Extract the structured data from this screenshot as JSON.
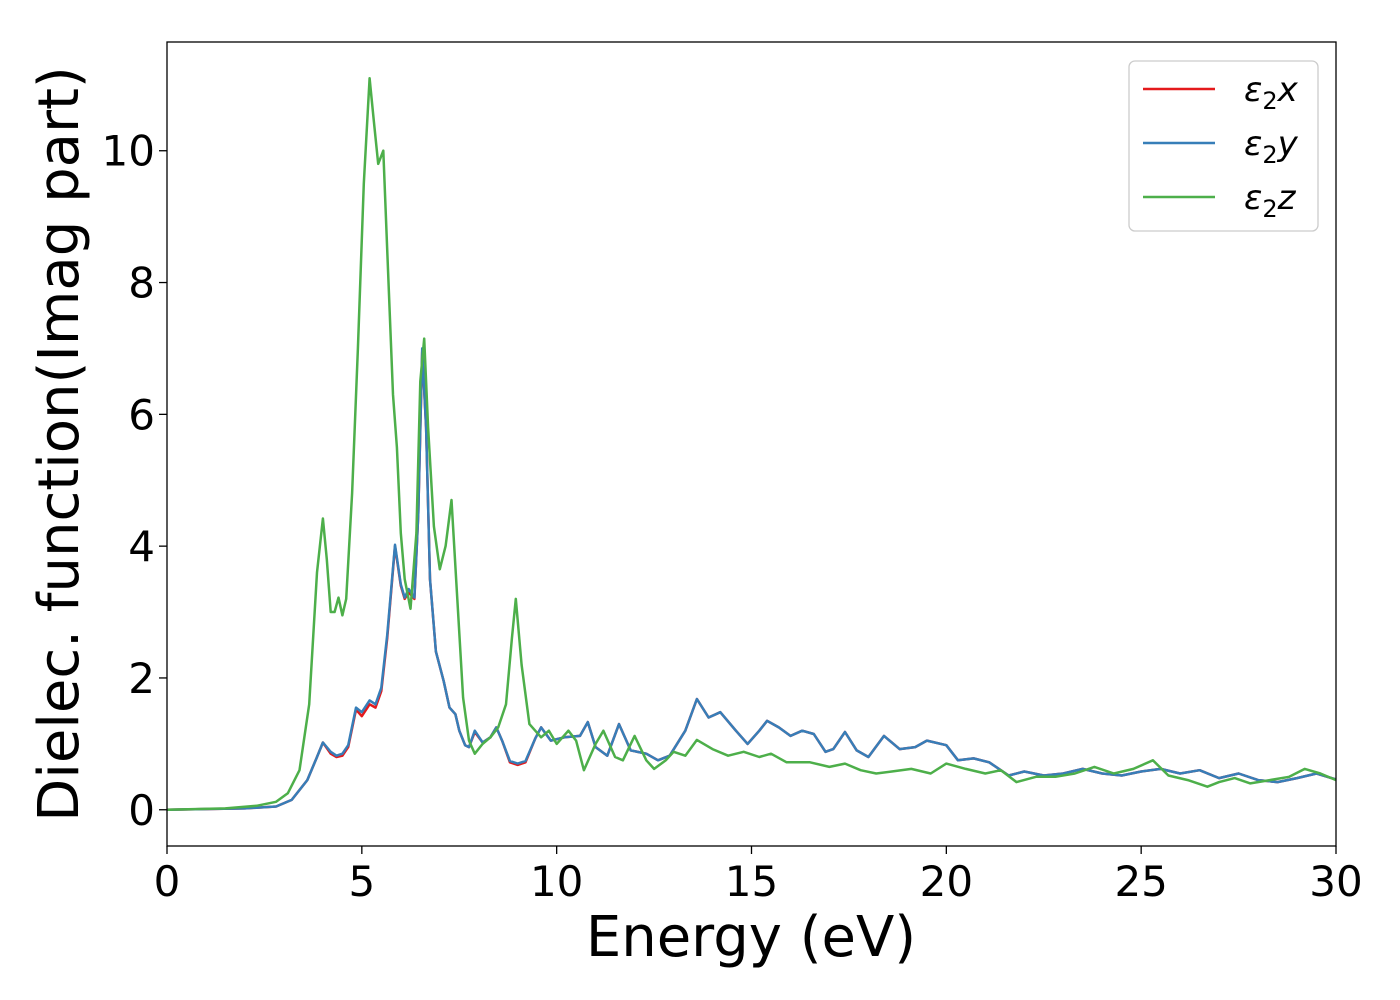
{
  "chart_data": {
    "type": "line",
    "xlabel": "Energy (eV)",
    "ylabel": "Dielec. function(Imag part)",
    "xlim": [
      0,
      30
    ],
    "ylim": [
      -0.55,
      11.65
    ],
    "xticks": [
      0,
      5,
      10,
      15,
      20,
      25,
      30
    ],
    "yticks": [
      0,
      2,
      4,
      6,
      8,
      10
    ],
    "grid": false,
    "legend_position": "top-right",
    "series": [
      {
        "name": "ε2x",
        "greek": "ε",
        "sub": "2",
        "axis": "x",
        "color": "#e41a1c",
        "points": [
          [
            0,
            0
          ],
          [
            2,
            0.02
          ],
          [
            2.8,
            0.05
          ],
          [
            3.2,
            0.15
          ],
          [
            3.6,
            0.45
          ],
          [
            3.85,
            0.8
          ],
          [
            4.0,
            1.02
          ],
          [
            4.2,
            0.85
          ],
          [
            4.35,
            0.8
          ],
          [
            4.5,
            0.82
          ],
          [
            4.65,
            0.95
          ],
          [
            4.85,
            1.52
          ],
          [
            5.0,
            1.42
          ],
          [
            5.2,
            1.6
          ],
          [
            5.35,
            1.55
          ],
          [
            5.5,
            1.8
          ],
          [
            5.65,
            2.6
          ],
          [
            5.85,
            4.0
          ],
          [
            6.0,
            3.4
          ],
          [
            6.1,
            3.2
          ],
          [
            6.2,
            3.3
          ],
          [
            6.35,
            3.2
          ],
          [
            6.45,
            4.5
          ],
          [
            6.55,
            6.95
          ],
          [
            6.65,
            5.8
          ],
          [
            6.75,
            3.5
          ],
          [
            6.9,
            2.4
          ],
          [
            7.1,
            1.95
          ],
          [
            7.25,
            1.55
          ],
          [
            7.4,
            1.45
          ],
          [
            7.5,
            1.2
          ],
          [
            7.65,
            0.98
          ],
          [
            7.75,
            0.95
          ],
          [
            7.9,
            1.18
          ],
          [
            8.1,
            1.02
          ],
          [
            8.3,
            1.1
          ],
          [
            8.45,
            1.25
          ],
          [
            8.6,
            1.05
          ],
          [
            8.8,
            0.72
          ],
          [
            9.0,
            0.68
          ],
          [
            9.2,
            0.72
          ],
          [
            9.45,
            1.08
          ],
          [
            9.6,
            1.25
          ],
          [
            9.85,
            1.05
          ],
          [
            10.2,
            1.1
          ],
          [
            10.6,
            1.12
          ],
          [
            10.8,
            1.33
          ],
          [
            11.0,
            0.95
          ],
          [
            11.3,
            0.82
          ],
          [
            11.6,
            1.3
          ],
          [
            11.9,
            0.9
          ],
          [
            12.3,
            0.85
          ],
          [
            12.6,
            0.75
          ],
          [
            12.9,
            0.82
          ],
          [
            13.3,
            1.2
          ],
          [
            13.6,
            1.68
          ],
          [
            13.9,
            1.4
          ],
          [
            14.2,
            1.48
          ],
          [
            14.6,
            1.2
          ],
          [
            14.9,
            1.0
          ],
          [
            15.2,
            1.2
          ],
          [
            15.4,
            1.35
          ],
          [
            15.7,
            1.25
          ],
          [
            16.0,
            1.12
          ],
          [
            16.3,
            1.2
          ],
          [
            16.6,
            1.15
          ],
          [
            16.9,
            0.88
          ],
          [
            17.1,
            0.92
          ],
          [
            17.4,
            1.18
          ],
          [
            17.7,
            0.9
          ],
          [
            18.0,
            0.8
          ],
          [
            18.4,
            1.12
          ],
          [
            18.8,
            0.92
          ],
          [
            19.2,
            0.95
          ],
          [
            19.5,
            1.05
          ],
          [
            20.0,
            0.98
          ],
          [
            20.3,
            0.75
          ],
          [
            20.7,
            0.78
          ],
          [
            21.1,
            0.72
          ],
          [
            21.6,
            0.52
          ],
          [
            22.0,
            0.58
          ],
          [
            22.5,
            0.52
          ],
          [
            23.0,
            0.55
          ],
          [
            23.5,
            0.62
          ],
          [
            24.0,
            0.55
          ],
          [
            24.5,
            0.52
          ],
          [
            25.0,
            0.58
          ],
          [
            25.5,
            0.62
          ],
          [
            26.0,
            0.55
          ],
          [
            26.5,
            0.6
          ],
          [
            27.0,
            0.48
          ],
          [
            27.5,
            0.55
          ],
          [
            28.0,
            0.45
          ],
          [
            28.5,
            0.42
          ],
          [
            29.0,
            0.48
          ],
          [
            29.5,
            0.55
          ],
          [
            30.0,
            0.46
          ]
        ]
      },
      {
        "name": "ε2y",
        "greek": "ε",
        "sub": "2",
        "axis": "y",
        "color": "#377eb8",
        "points": [
          [
            0,
            0
          ],
          [
            2,
            0.02
          ],
          [
            2.8,
            0.05
          ],
          [
            3.2,
            0.15
          ],
          [
            3.6,
            0.45
          ],
          [
            3.85,
            0.8
          ],
          [
            4.0,
            1.02
          ],
          [
            4.2,
            0.88
          ],
          [
            4.35,
            0.82
          ],
          [
            4.5,
            0.85
          ],
          [
            4.65,
            0.98
          ],
          [
            4.85,
            1.55
          ],
          [
            5.0,
            1.48
          ],
          [
            5.2,
            1.66
          ],
          [
            5.35,
            1.6
          ],
          [
            5.5,
            1.85
          ],
          [
            5.65,
            2.65
          ],
          [
            5.85,
            4.02
          ],
          [
            6.0,
            3.42
          ],
          [
            6.1,
            3.22
          ],
          [
            6.2,
            3.35
          ],
          [
            6.35,
            3.22
          ],
          [
            6.45,
            4.5
          ],
          [
            6.55,
            7.0
          ],
          [
            6.65,
            5.8
          ],
          [
            6.75,
            3.5
          ],
          [
            6.9,
            2.4
          ],
          [
            7.1,
            1.95
          ],
          [
            7.25,
            1.55
          ],
          [
            7.4,
            1.45
          ],
          [
            7.5,
            1.2
          ],
          [
            7.65,
            0.98
          ],
          [
            7.75,
            0.95
          ],
          [
            7.9,
            1.2
          ],
          [
            8.1,
            1.02
          ],
          [
            8.3,
            1.1
          ],
          [
            8.45,
            1.25
          ],
          [
            8.6,
            1.05
          ],
          [
            8.8,
            0.74
          ],
          [
            9.0,
            0.7
          ],
          [
            9.2,
            0.74
          ],
          [
            9.45,
            1.08
          ],
          [
            9.6,
            1.25
          ],
          [
            9.85,
            1.05
          ],
          [
            10.2,
            1.1
          ],
          [
            10.6,
            1.12
          ],
          [
            10.8,
            1.33
          ],
          [
            11.0,
            0.95
          ],
          [
            11.3,
            0.82
          ],
          [
            11.6,
            1.3
          ],
          [
            11.9,
            0.9
          ],
          [
            12.3,
            0.85
          ],
          [
            12.6,
            0.75
          ],
          [
            12.9,
            0.82
          ],
          [
            13.3,
            1.2
          ],
          [
            13.6,
            1.68
          ],
          [
            13.9,
            1.4
          ],
          [
            14.2,
            1.48
          ],
          [
            14.6,
            1.2
          ],
          [
            14.9,
            1.0
          ],
          [
            15.2,
            1.2
          ],
          [
            15.4,
            1.35
          ],
          [
            15.7,
            1.25
          ],
          [
            16.0,
            1.12
          ],
          [
            16.3,
            1.2
          ],
          [
            16.6,
            1.15
          ],
          [
            16.9,
            0.88
          ],
          [
            17.1,
            0.92
          ],
          [
            17.4,
            1.18
          ],
          [
            17.7,
            0.9
          ],
          [
            18.0,
            0.8
          ],
          [
            18.4,
            1.12
          ],
          [
            18.8,
            0.92
          ],
          [
            19.2,
            0.95
          ],
          [
            19.5,
            1.05
          ],
          [
            20.0,
            0.98
          ],
          [
            20.3,
            0.75
          ],
          [
            20.7,
            0.78
          ],
          [
            21.1,
            0.72
          ],
          [
            21.6,
            0.52
          ],
          [
            22.0,
            0.58
          ],
          [
            22.5,
            0.52
          ],
          [
            23.0,
            0.55
          ],
          [
            23.5,
            0.62
          ],
          [
            24.0,
            0.55
          ],
          [
            24.5,
            0.52
          ],
          [
            25.0,
            0.58
          ],
          [
            25.5,
            0.62
          ],
          [
            26.0,
            0.55
          ],
          [
            26.5,
            0.6
          ],
          [
            27.0,
            0.48
          ],
          [
            27.5,
            0.55
          ],
          [
            28.0,
            0.45
          ],
          [
            28.5,
            0.42
          ],
          [
            29.0,
            0.48
          ],
          [
            29.5,
            0.55
          ],
          [
            30.0,
            0.46
          ]
        ]
      },
      {
        "name": "ε2z",
        "greek": "ε",
        "sub": "2",
        "axis": "z",
        "color": "#4daf4a",
        "points": [
          [
            0,
            0
          ],
          [
            1.5,
            0.02
          ],
          [
            2.3,
            0.06
          ],
          [
            2.8,
            0.12
          ],
          [
            3.1,
            0.25
          ],
          [
            3.4,
            0.6
          ],
          [
            3.65,
            1.6
          ],
          [
            3.85,
            3.6
          ],
          [
            4.0,
            4.42
          ],
          [
            4.1,
            3.8
          ],
          [
            4.2,
            3.0
          ],
          [
            4.3,
            3.0
          ],
          [
            4.4,
            3.22
          ],
          [
            4.5,
            2.95
          ],
          [
            4.6,
            3.2
          ],
          [
            4.75,
            4.8
          ],
          [
            4.9,
            7.0
          ],
          [
            5.05,
            9.5
          ],
          [
            5.2,
            11.1
          ],
          [
            5.3,
            10.5
          ],
          [
            5.42,
            9.8
          ],
          [
            5.55,
            10.0
          ],
          [
            5.65,
            8.5
          ],
          [
            5.8,
            6.3
          ],
          [
            5.9,
            5.5
          ],
          [
            6.0,
            4.2
          ],
          [
            6.1,
            3.5
          ],
          [
            6.25,
            3.05
          ],
          [
            6.4,
            4.2
          ],
          [
            6.5,
            6.5
          ],
          [
            6.6,
            7.15
          ],
          [
            6.7,
            5.8
          ],
          [
            6.85,
            4.3
          ],
          [
            7.0,
            3.65
          ],
          [
            7.15,
            4.0
          ],
          [
            7.3,
            4.7
          ],
          [
            7.45,
            3.2
          ],
          [
            7.6,
            1.7
          ],
          [
            7.75,
            1.05
          ],
          [
            7.9,
            0.85
          ],
          [
            8.1,
            1.0
          ],
          [
            8.3,
            1.1
          ],
          [
            8.5,
            1.25
          ],
          [
            8.7,
            1.6
          ],
          [
            8.85,
            2.6
          ],
          [
            8.95,
            3.2
          ],
          [
            9.1,
            2.2
          ],
          [
            9.3,
            1.3
          ],
          [
            9.6,
            1.1
          ],
          [
            9.8,
            1.2
          ],
          [
            10.0,
            1.0
          ],
          [
            10.3,
            1.2
          ],
          [
            10.5,
            1.05
          ],
          [
            10.7,
            0.6
          ],
          [
            11.0,
            1.0
          ],
          [
            11.2,
            1.2
          ],
          [
            11.5,
            0.8
          ],
          [
            11.7,
            0.75
          ],
          [
            12.0,
            1.12
          ],
          [
            12.3,
            0.75
          ],
          [
            12.5,
            0.62
          ],
          [
            12.8,
            0.75
          ],
          [
            13.0,
            0.88
          ],
          [
            13.3,
            0.82
          ],
          [
            13.6,
            1.06
          ],
          [
            14.0,
            0.92
          ],
          [
            14.4,
            0.82
          ],
          [
            14.8,
            0.88
          ],
          [
            15.2,
            0.8
          ],
          [
            15.5,
            0.85
          ],
          [
            15.9,
            0.72
          ],
          [
            16.5,
            0.72
          ],
          [
            17.0,
            0.65
          ],
          [
            17.4,
            0.7
          ],
          [
            17.8,
            0.6
          ],
          [
            18.2,
            0.55
          ],
          [
            18.6,
            0.58
          ],
          [
            19.1,
            0.62
          ],
          [
            19.6,
            0.55
          ],
          [
            20.0,
            0.7
          ],
          [
            20.5,
            0.62
          ],
          [
            21.0,
            0.55
          ],
          [
            21.4,
            0.6
          ],
          [
            21.8,
            0.42
          ],
          [
            22.3,
            0.5
          ],
          [
            22.8,
            0.5
          ],
          [
            23.3,
            0.55
          ],
          [
            23.8,
            0.65
          ],
          [
            24.3,
            0.55
          ],
          [
            24.8,
            0.62
          ],
          [
            25.3,
            0.75
          ],
          [
            25.7,
            0.52
          ],
          [
            26.2,
            0.45
          ],
          [
            26.7,
            0.35
          ],
          [
            27.0,
            0.42
          ],
          [
            27.4,
            0.48
          ],
          [
            27.8,
            0.4
          ],
          [
            28.3,
            0.45
          ],
          [
            28.8,
            0.5
          ],
          [
            29.2,
            0.62
          ],
          [
            29.6,
            0.55
          ],
          [
            30.0,
            0.45
          ]
        ]
      }
    ]
  }
}
